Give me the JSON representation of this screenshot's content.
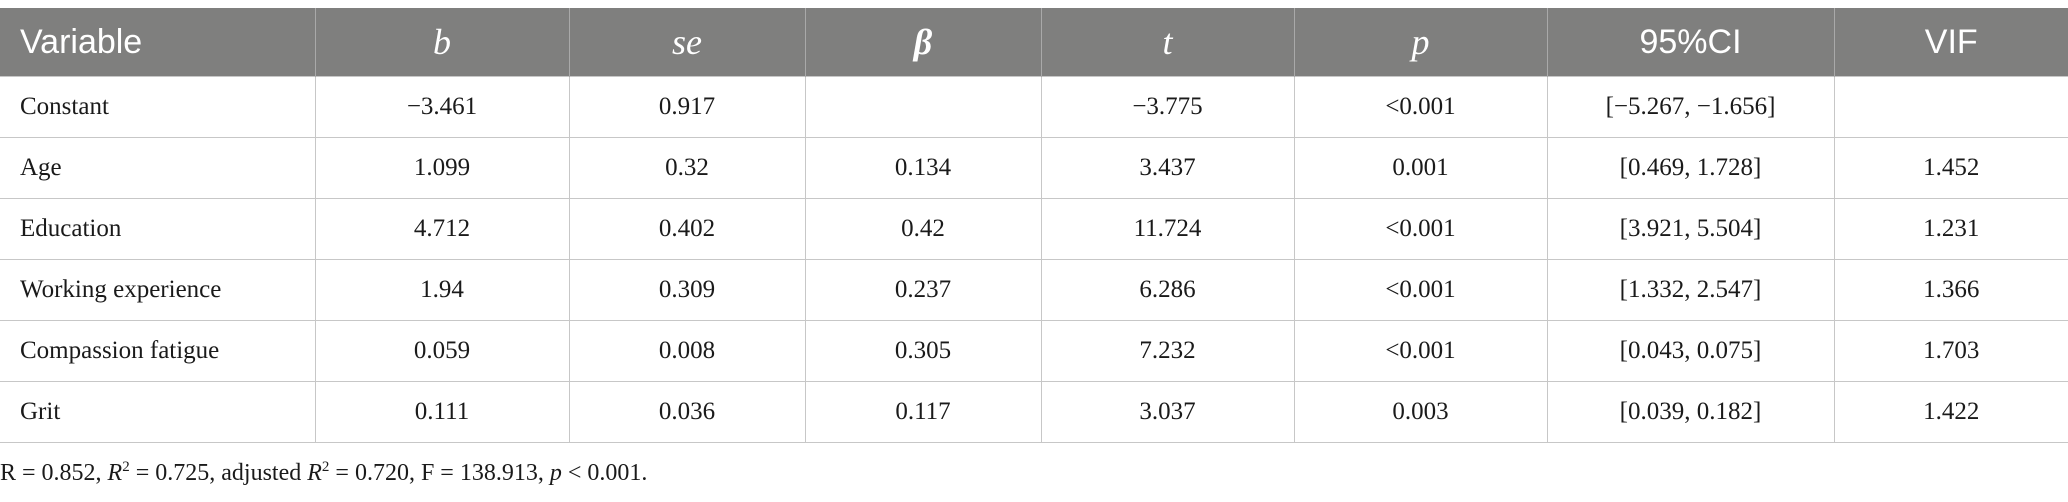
{
  "table": {
    "headers": [
      "Variable",
      "b",
      "se",
      "β",
      "t",
      "p",
      "95%CI",
      "VIF"
    ],
    "rows": [
      [
        "Constant",
        "−3.461",
        "0.917",
        "",
        "−3.775",
        "<0.001",
        "[−5.267, −1.656]",
        ""
      ],
      [
        "Age",
        "1.099",
        "0.32",
        "0.134",
        "3.437",
        "0.001",
        "[0.469, 1.728]",
        "1.452"
      ],
      [
        "Education",
        "4.712",
        "0.402",
        "0.42",
        "11.724",
        "<0.001",
        "[3.921, 5.504]",
        "1.231"
      ],
      [
        "Working experience",
        "1.94",
        "0.309",
        "0.237",
        "6.286",
        "<0.001",
        "[1.332, 2.547]",
        "1.366"
      ],
      [
        "Compassion fatigue",
        "0.059",
        "0.008",
        "0.305",
        "7.232",
        "<0.001",
        "[0.043, 0.075]",
        "1.703"
      ],
      [
        "Grit",
        "0.111",
        "0.036",
        "0.117",
        "3.037",
        "0.003",
        "[0.039, 0.182]",
        "1.422"
      ]
    ]
  },
  "footnote": {
    "r_text": "R = 0.852, ",
    "r2_symbol": "R",
    "r2_sup": "2",
    "r2_text": " = 0.725, adjusted ",
    "adj_r2_symbol": "R",
    "adj_r2_sup": "2",
    "adj_text": " = 0.720, F = 138.913, ",
    "p_symbol": "p",
    "p_text": " < 0.001."
  }
}
